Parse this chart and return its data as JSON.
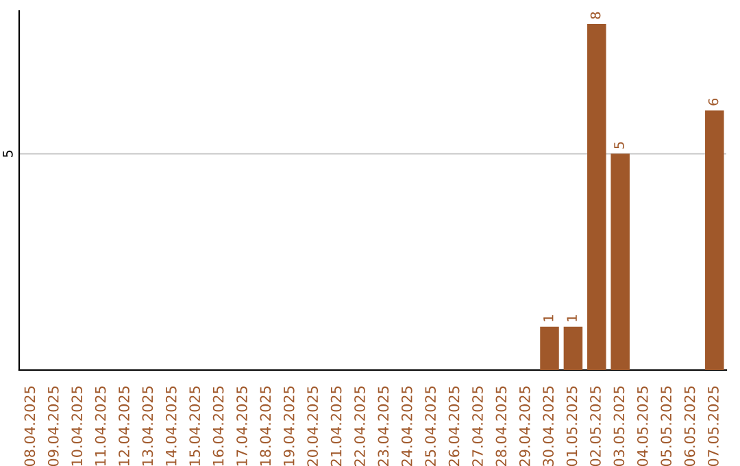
{
  "chart_data": {
    "type": "bar",
    "categories": [
      "08.04.2025",
      "09.04.2025",
      "10.04.2025",
      "11.04.2025",
      "12.04.2025",
      "13.04.2025",
      "14.04.2025",
      "15.04.2025",
      "16.04.2025",
      "17.04.2025",
      "18.04.2025",
      "19.04.2025",
      "20.04.2025",
      "21.04.2025",
      "22.04.2025",
      "23.04.2025",
      "24.04.2025",
      "25.04.2025",
      "26.04.2025",
      "27.04.2025",
      "28.04.2025",
      "29.04.2025",
      "30.04.2025",
      "01.05.2025",
      "02.05.2025",
      "03.05.2025",
      "04.05.2025",
      "05.05.2025",
      "06.05.2025",
      "07.05.2025"
    ],
    "values": [
      null,
      null,
      null,
      null,
      null,
      null,
      null,
      null,
      null,
      null,
      null,
      null,
      null,
      null,
      null,
      null,
      null,
      null,
      null,
      null,
      null,
      null,
      1,
      1,
      8,
      5,
      null,
      null,
      null,
      6
    ],
    "color": "#a0582a",
    "ylim": [
      0,
      8.3
    ],
    "yticks": [
      5
    ],
    "grid": "y",
    "data_labels": true
  }
}
